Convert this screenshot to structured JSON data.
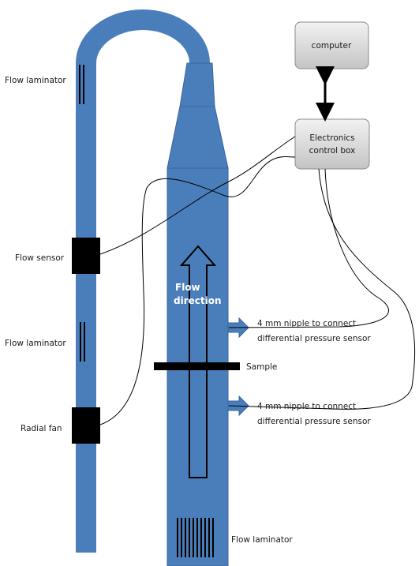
{
  "colors": {
    "pipe": "#4a7ebb",
    "pipe_edge": "#3a65a0",
    "box_fill": "#d4d4d4",
    "box_stroke": "#8c8c8c",
    "black": "#000000"
  },
  "boxes": {
    "computer": "computer",
    "control_box_line1": "Electronics",
    "control_box_line2": "control box"
  },
  "labels": {
    "flow_laminator_top": "Flow laminator",
    "flow_sensor": "Flow sensor",
    "flow_laminator_mid": "Flow laminator",
    "radial_fan": "Radial fan",
    "flow_direction_line1": "Flow",
    "flow_direction_line2": "direction",
    "nipple1_line1": "4 mm nipple to connect",
    "nipple1_line2": "differential pressure sensor",
    "sample": "Sample",
    "nipple2_line1": "4 mm nipple to connect",
    "nipple2_line2": "differential pressure sensor",
    "flow_laminator_bottom": "Flow laminator"
  },
  "icons": {
    "arrow": "right-arrow-icon",
    "double_arrow": "double-headed-arrow-icon"
  }
}
